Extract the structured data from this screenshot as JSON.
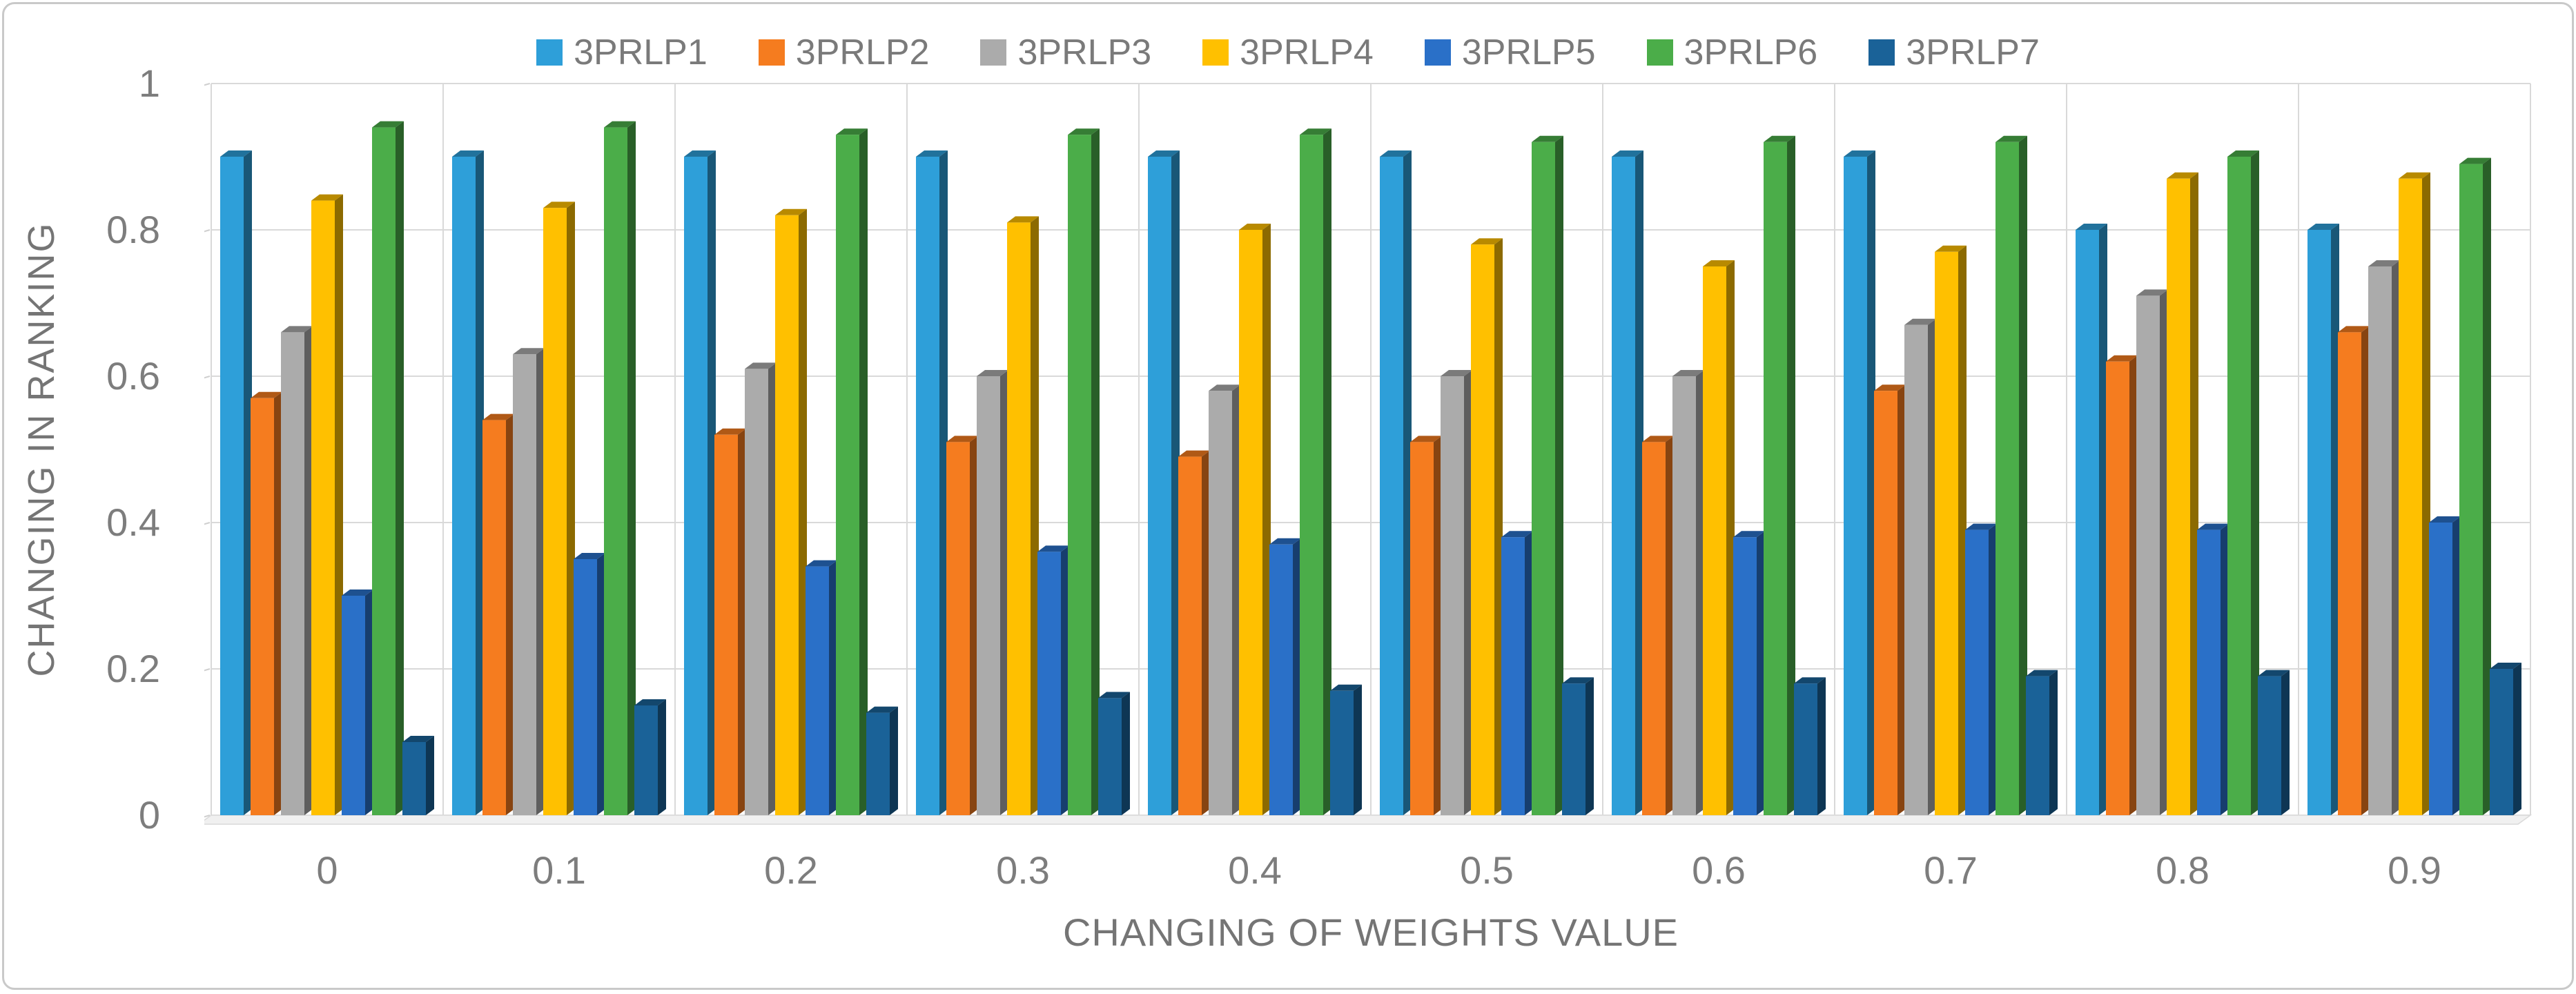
{
  "figure": {
    "border_color": "#c9c9c9",
    "background": "#ffffff",
    "text_color": "#757575",
    "gridline_color": "#d9d9d9"
  },
  "chart_data": {
    "type": "bar",
    "style": "3d-clustered-column",
    "title": "",
    "xlabel": "CHANGING OF WEIGHTS VALUE",
    "ylabel": "CHANGING IN RANKING",
    "categories": [
      "0",
      "0.1",
      "0.2",
      "0.3",
      "0.4",
      "0.5",
      "0.6",
      "0.7",
      "0.8",
      "0.9"
    ],
    "ylim": [
      0,
      1
    ],
    "yticks": [
      0,
      0.2,
      0.4,
      0.6,
      0.8,
      1
    ],
    "grid": true,
    "legend_position": "top",
    "series": [
      {
        "name": "3PRLP1",
        "color": "#2E9FD9",
        "values": [
          0.9,
          0.9,
          0.9,
          0.9,
          0.9,
          0.9,
          0.9,
          0.9,
          0.8,
          0.8
        ]
      },
      {
        "name": "3PRLP2",
        "color": "#F57C1F",
        "values": [
          0.57,
          0.54,
          0.52,
          0.51,
          0.49,
          0.51,
          0.51,
          0.58,
          0.62,
          0.66
        ]
      },
      {
        "name": "3PRLP3",
        "color": "#ABABAB",
        "values": [
          0.66,
          0.63,
          0.61,
          0.6,
          0.58,
          0.6,
          0.6,
          0.67,
          0.71,
          0.75
        ]
      },
      {
        "name": "3PRLP4",
        "color": "#FFC000",
        "values": [
          0.84,
          0.83,
          0.82,
          0.81,
          0.8,
          0.78,
          0.75,
          0.77,
          0.87,
          0.87
        ]
      },
      {
        "name": "3PRLP5",
        "color": "#2A70C8",
        "values": [
          0.3,
          0.35,
          0.34,
          0.36,
          0.37,
          0.38,
          0.38,
          0.39,
          0.39,
          0.4
        ]
      },
      {
        "name": "3PRLP6",
        "color": "#4BAD49",
        "values": [
          0.94,
          0.94,
          0.93,
          0.93,
          0.93,
          0.92,
          0.92,
          0.92,
          0.9,
          0.89
        ]
      },
      {
        "name": "3PRLP7",
        "color": "#1A6298",
        "values": [
          0.1,
          0.15,
          0.14,
          0.16,
          0.17,
          0.18,
          0.18,
          0.19,
          0.19,
          0.2
        ]
      }
    ]
  }
}
